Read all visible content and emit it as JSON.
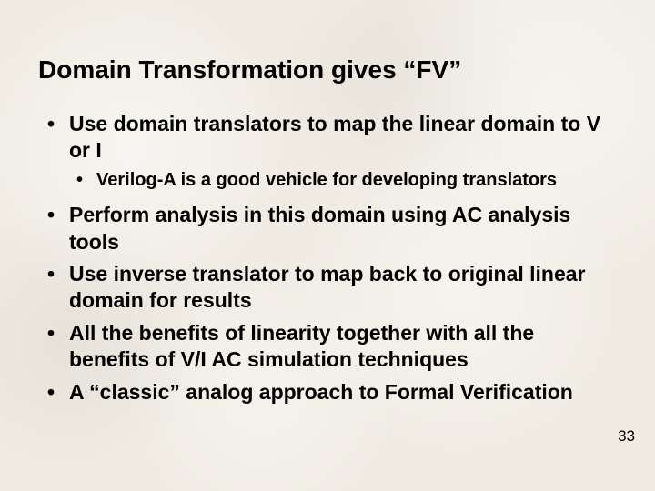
{
  "title": "Domain Transformation gives “FV”",
  "bullets": [
    {
      "text": "Use domain translators to map the linear domain to V or I",
      "sub": [
        "Verilog-A is a good vehicle for developing translators"
      ]
    },
    {
      "text": "Perform analysis in this domain using AC analysis tools"
    },
    {
      "text": "Use inverse translator to map back to original linear domain for results"
    },
    {
      "text": "All the benefits of linearity together with all the benefits of V/I AC simulation techniques"
    },
    {
      "text": "A “classic” analog approach to Formal Verification"
    }
  ],
  "page_number": "33",
  "style": {
    "background": "#f0ece4",
    "text_color": "#000000",
    "title_fontsize": 28,
    "bullet_fontsize": 23,
    "subbullet_fontsize": 20
  }
}
